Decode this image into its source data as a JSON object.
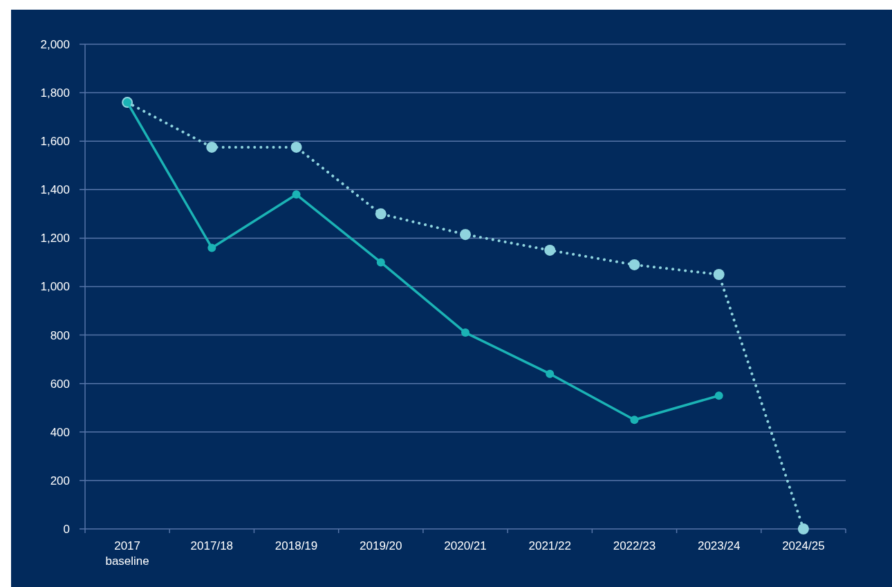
{
  "chart_data": {
    "type": "line",
    "categories": [
      "2017\nbaseline",
      "2017/18",
      "2018/19",
      "2019/20",
      "2020/21",
      "2021/22",
      "2022/23",
      "2023/24",
      "2024/25"
    ],
    "series": [
      {
        "color": "#1bb3b5",
        "line_style": "solid",
        "values": [
          1760,
          1160,
          1380,
          1100,
          810,
          640,
          450,
          550,
          null
        ]
      },
      {
        "color": "#8fd4de",
        "line_style": "dotted",
        "values": [
          1760,
          1575,
          1575,
          1300,
          1215,
          1150,
          1090,
          1050,
          0
        ]
      }
    ],
    "ylim": [
      0,
      2000
    ],
    "yticks": [
      0,
      {
        "value": 200,
        "label": "200"
      },
      {
        "value": 400,
        "label": "400"
      },
      {
        "value": 600,
        "label": "600"
      },
      {
        "value": 800,
        "label": "800"
      },
      {
        "value": 1000,
        "label": "1,000"
      },
      {
        "value": 1200,
        "label": "1,200"
      },
      {
        "value": 1400,
        "label": "1,400"
      },
      {
        "value": 1600,
        "label": "1,600"
      },
      {
        "value": 1800,
        "label": "1,800"
      },
      {
        "value": 2000,
        "label": "2,000"
      }
    ],
    "grid": "y",
    "marker": "circle"
  }
}
